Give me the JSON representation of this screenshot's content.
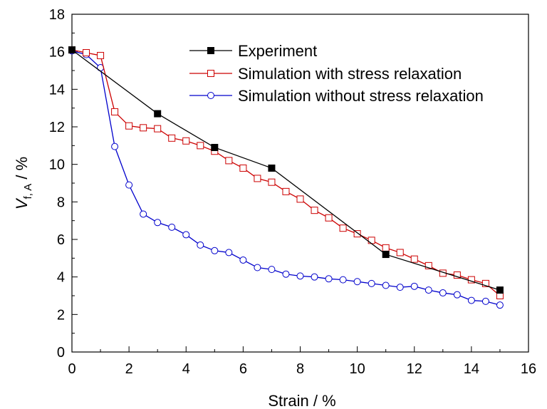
{
  "chart_data": {
    "type": "line",
    "title": "",
    "xlabel": "Strain / %",
    "ylabel": {
      "main": "V",
      "subscript": "f, A",
      "unit": " / %"
    },
    "xlim": [
      0,
      16
    ],
    "ylim": [
      0,
      18
    ],
    "xticks": [
      "0",
      "2",
      "4",
      "6",
      "8",
      "10",
      "12",
      "14",
      "16"
    ],
    "yticks": [
      "0",
      "2",
      "4",
      "6",
      "8",
      "10",
      "12",
      "14",
      "16",
      "18"
    ],
    "grid": false,
    "legend_position": "top-right",
    "series": [
      {
        "name": "Experiment",
        "color": "#000000",
        "marker": "filled-square",
        "x": [
          0,
          3,
          5,
          7,
          11,
          15
        ],
        "y": [
          16.1,
          12.7,
          10.9,
          9.8,
          5.2,
          3.3
        ]
      },
      {
        "name": "Simulation with stress relaxation",
        "color": "#cc0000",
        "marker": "open-square",
        "x": [
          0,
          0.5,
          1.0,
          1.5,
          2.0,
          2.5,
          3.0,
          3.5,
          4.0,
          4.5,
          5.0,
          5.5,
          6.0,
          6.5,
          7.0,
          7.5,
          8.0,
          8.5,
          9.0,
          9.5,
          10.0,
          10.5,
          11.0,
          11.5,
          12.0,
          12.5,
          13.0,
          13.5,
          14.0,
          14.5,
          15.0
        ],
        "y": [
          16.1,
          15.95,
          15.8,
          12.8,
          12.05,
          11.95,
          11.9,
          11.4,
          11.25,
          11.0,
          10.7,
          10.2,
          9.8,
          9.25,
          9.05,
          8.55,
          8.15,
          7.55,
          7.15,
          6.6,
          6.3,
          5.95,
          5.55,
          5.3,
          4.95,
          4.6,
          4.2,
          4.1,
          3.85,
          3.65,
          3.0
        ]
      },
      {
        "name": "Simulation without stress relaxation",
        "color": "#0000cc",
        "marker": "open-circle",
        "x": [
          0,
          0.5,
          1.0,
          1.5,
          2.0,
          2.5,
          3.0,
          3.5,
          4.0,
          4.5,
          5.0,
          5.5,
          6.0,
          6.5,
          7.0,
          7.5,
          8.0,
          8.5,
          9.0,
          9.5,
          10.0,
          10.5,
          11.0,
          11.5,
          12.0,
          12.5,
          13.0,
          13.5,
          14.0,
          14.5,
          15.0
        ],
        "y": [
          16.05,
          15.85,
          15.15,
          10.95,
          8.9,
          7.35,
          6.9,
          6.65,
          6.25,
          5.7,
          5.4,
          5.3,
          4.9,
          4.5,
          4.4,
          4.15,
          4.05,
          4.0,
          3.9,
          3.85,
          3.75,
          3.65,
          3.55,
          3.45,
          3.5,
          3.3,
          3.15,
          3.05,
          2.75,
          2.7,
          2.5
        ]
      }
    ]
  }
}
